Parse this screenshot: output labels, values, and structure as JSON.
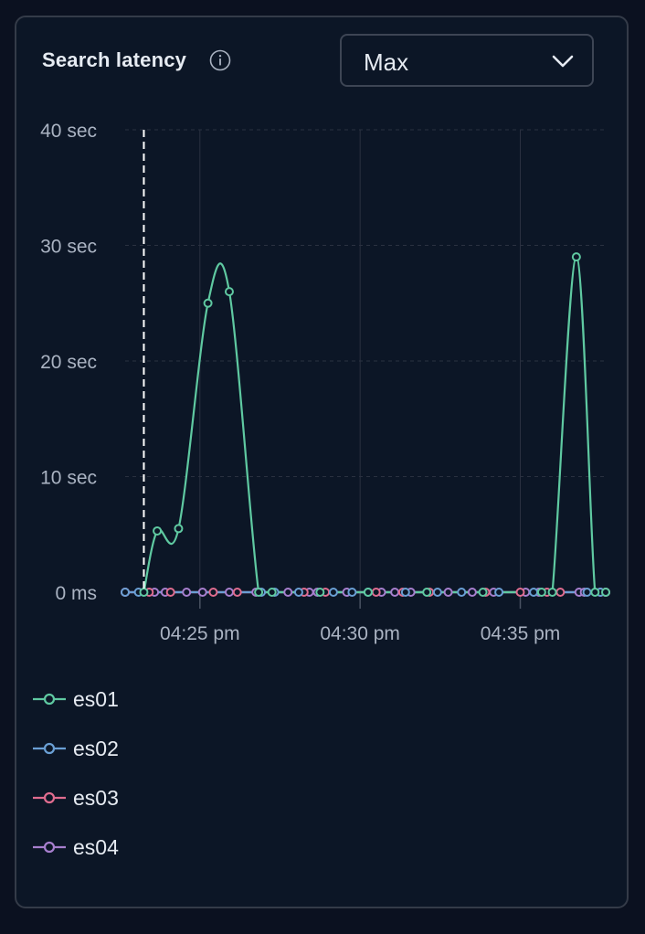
{
  "panel": {
    "title": "Search latency",
    "info_icon": "info-circle-icon",
    "dropdown": {
      "selected": "Max",
      "icon": "chevron-down-icon"
    }
  },
  "colors": {
    "es01": "#5fc9a1",
    "es02": "#6a9fd4",
    "es03": "#e06c8f",
    "es04": "#a77fce",
    "grid": "#2a3140",
    "axis_text": "#aab3c2",
    "cursor": "#ffffff"
  },
  "chart_data": {
    "type": "line",
    "y_tick_labels": [
      "0 ms",
      "10 sec",
      "20 sec",
      "30 sec",
      "40 sec"
    ],
    "y_ticks": [
      0,
      10,
      20,
      30,
      40
    ],
    "ylim": [
      0,
      40
    ],
    "x_tick_labels": [
      "04:25 pm",
      "04:30 pm",
      "04:35 pm"
    ],
    "x_ticks": [
      "04:25",
      "04:30",
      "04:35"
    ],
    "xlim": [
      "04:22:40",
      "04:37:40"
    ],
    "grid": true,
    "legend_position": "bottom-left",
    "cursor_x": "04:23:15",
    "series": [
      {
        "name": "es01",
        "points": [
          [
            "04:23:15",
            0
          ],
          [
            "04:23:40",
            5.3
          ],
          [
            "04:24:20",
            5.5
          ],
          [
            "04:25:15",
            25.0
          ],
          [
            "04:25:55",
            26.0
          ],
          [
            "04:26:50",
            0
          ],
          [
            "04:27:15",
            0
          ],
          [
            "04:28:45",
            0
          ],
          [
            "04:30:15",
            0
          ],
          [
            "04:32:05",
            0
          ],
          [
            "04:33:50",
            0
          ],
          [
            "04:35:40",
            0
          ],
          [
            "04:36:00",
            0
          ],
          [
            "04:36:45",
            29.0
          ],
          [
            "04:37:20",
            0
          ],
          [
            "04:37:40",
            0
          ]
        ]
      },
      {
        "name": "es02",
        "points": [
          [
            "04:22:40",
            0
          ],
          [
            "04:23:05",
            0
          ],
          [
            "04:26:55",
            0
          ],
          [
            "04:27:20",
            0
          ],
          [
            "04:28:05",
            0
          ],
          [
            "04:29:10",
            0
          ],
          [
            "04:29:45",
            0
          ],
          [
            "04:30:15",
            0
          ],
          [
            "04:31:25",
            0
          ],
          [
            "04:32:25",
            0
          ],
          [
            "04:33:10",
            0
          ],
          [
            "04:34:20",
            0
          ],
          [
            "04:35:25",
            0
          ],
          [
            "04:37:05",
            0
          ],
          [
            "04:37:30",
            0
          ]
        ]
      },
      {
        "name": "es03",
        "points": [
          [
            "04:22:40",
            0
          ],
          [
            "04:23:25",
            0
          ],
          [
            "04:24:05",
            0
          ],
          [
            "04:25:25",
            0
          ],
          [
            "04:26:10",
            0
          ],
          [
            "04:28:15",
            0
          ],
          [
            "04:28:55",
            0
          ],
          [
            "04:30:30",
            0
          ],
          [
            "04:31:20",
            0
          ],
          [
            "04:32:10",
            0
          ],
          [
            "04:33:55",
            0
          ],
          [
            "04:35:00",
            0
          ],
          [
            "04:35:50",
            0
          ],
          [
            "04:36:15",
            0
          ],
          [
            "04:37:40",
            0
          ]
        ]
      },
      {
        "name": "es04",
        "points": [
          [
            "04:22:40",
            0
          ],
          [
            "04:23:35",
            0
          ],
          [
            "04:23:55",
            0
          ],
          [
            "04:24:35",
            0
          ],
          [
            "04:25:05",
            0
          ],
          [
            "04:25:55",
            0
          ],
          [
            "04:26:45",
            0
          ],
          [
            "04:27:45",
            0
          ],
          [
            "04:28:25",
            0
          ],
          [
            "04:28:40",
            0
          ],
          [
            "04:29:35",
            0
          ],
          [
            "04:30:40",
            0
          ],
          [
            "04:31:05",
            0
          ],
          [
            "04:31:35",
            0
          ],
          [
            "04:32:45",
            0
          ],
          [
            "04:33:30",
            0
          ],
          [
            "04:34:10",
            0
          ],
          [
            "04:35:10",
            0
          ],
          [
            "04:35:35",
            0
          ],
          [
            "04:36:50",
            0
          ],
          [
            "04:37:00",
            0
          ],
          [
            "04:37:30",
            0
          ],
          [
            "04:37:40",
            0
          ]
        ]
      }
    ]
  }
}
